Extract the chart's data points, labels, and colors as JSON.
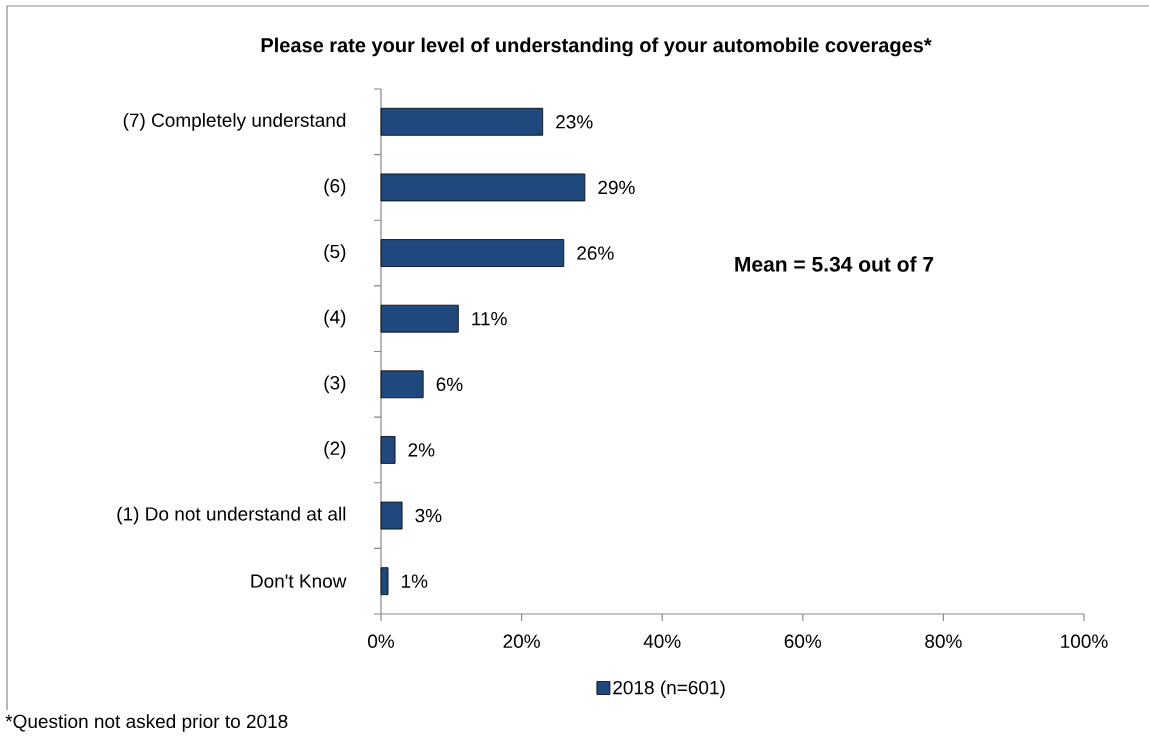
{
  "chart_data": {
    "type": "bar",
    "orientation": "horizontal",
    "title": "Please rate your level of understanding of your automobile coverages*",
    "categories": [
      "(7) Completely understand",
      "(6)",
      "(5)",
      "(4)",
      "(3)",
      "(2)",
      "(1) Do not understand at all",
      "Don't Know"
    ],
    "series": [
      {
        "name": "2018 (n=601)",
        "color": "#1f497d",
        "values": [
          23,
          29,
          26,
          11,
          6,
          2,
          3,
          1
        ],
        "value_labels": [
          "23%",
          "29%",
          "26%",
          "11%",
          "6%",
          "2%",
          "3%",
          "1%"
        ]
      }
    ],
    "xlim": [
      0,
      100
    ],
    "xticks": [
      {
        "value": 0,
        "label": "0%"
      },
      {
        "value": 20,
        "label": "20%"
      },
      {
        "value": 40,
        "label": "40%"
      },
      {
        "value": 60,
        "label": "60%"
      },
      {
        "value": 80,
        "label": "80%"
      },
      {
        "value": 100,
        "label": "100%"
      }
    ],
    "legend": "bottom",
    "annotations": [
      "Mean = 5.34 out of 7",
      "*Question not asked prior to 2018"
    ]
  }
}
